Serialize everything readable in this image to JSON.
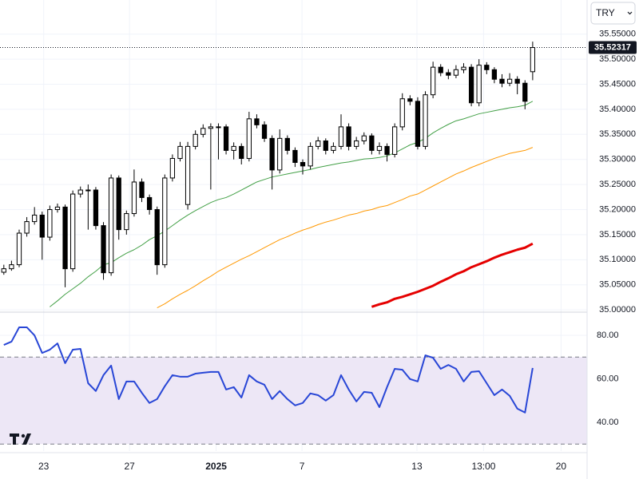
{
  "chart_data": [
    {
      "type": "candlestick",
      "currency": "TRY",
      "open": [
        35.075,
        35.082,
        35.09,
        35.153,
        35.176,
        35.189,
        35.145,
        35.2,
        35.205,
        35.082,
        35.231,
        35.239,
        35.239,
        35.168,
        35.074,
        35.263,
        35.16,
        35.192,
        35.255,
        35.224,
        35.2,
        35.09,
        35.263,
        35.302,
        35.21,
        35.326,
        35.35,
        35.362,
        35.365,
        35.365,
        35.318,
        35.326,
        35.302,
        35.381,
        35.369,
        35.342,
        35.279,
        35.342,
        35.318,
        35.294,
        35.287,
        35.326,
        35.337,
        35.318,
        35.326,
        35.365,
        35.326,
        35.337,
        35.347,
        35.318,
        35.326,
        35.31,
        35.365,
        35.421,
        35.416,
        35.326,
        35.429,
        35.484,
        35.473,
        35.468,
        35.479,
        35.484,
        35.413,
        35.488,
        35.479,
        35.46,
        35.452,
        35.46,
        35.452,
        35.475
      ],
      "high": [
        35.09,
        35.098,
        35.16,
        35.185,
        35.205,
        35.196,
        35.208,
        35.212,
        35.21,
        35.238,
        35.246,
        35.25,
        35.245,
        35.175,
        35.27,
        35.268,
        35.198,
        35.28,
        35.262,
        35.23,
        35.206,
        35.27,
        35.31,
        35.335,
        35.335,
        35.358,
        35.37,
        35.372,
        35.372,
        35.37,
        35.334,
        35.332,
        35.395,
        35.39,
        35.376,
        35.348,
        35.36,
        35.348,
        35.324,
        35.3,
        35.334,
        35.345,
        35.342,
        35.334,
        35.39,
        35.372,
        35.345,
        35.354,
        35.352,
        35.334,
        35.332,
        35.372,
        35.432,
        35.428,
        35.424,
        35.436,
        35.495,
        35.49,
        35.48,
        35.488,
        35.492,
        35.49,
        35.5,
        35.494,
        35.484,
        35.47,
        35.472,
        35.466,
        35.458,
        35.535
      ],
      "low": [
        35.07,
        35.078,
        35.085,
        35.146,
        35.17,
        35.1,
        35.138,
        35.194,
        35.045,
        35.076,
        35.224,
        35.16,
        35.16,
        35.06,
        35.068,
        35.14,
        35.15,
        35.186,
        35.215,
        35.19,
        35.07,
        35.084,
        35.256,
        35.296,
        35.2,
        35.32,
        35.344,
        35.24,
        35.3,
        35.31,
        35.3,
        35.29,
        35.296,
        35.362,
        35.335,
        35.24,
        35.272,
        35.31,
        35.285,
        35.27,
        35.28,
        35.32,
        35.31,
        35.312,
        35.32,
        35.318,
        35.32,
        35.33,
        35.31,
        35.31,
        35.296,
        35.304,
        35.358,
        35.408,
        35.32,
        35.32,
        35.422,
        35.466,
        35.46,
        35.462,
        35.472,
        35.406,
        35.406,
        35.47,
        35.452,
        35.444,
        35.446,
        35.43,
        35.4,
        35.458
      ],
      "close": [
        35.082,
        35.09,
        35.153,
        35.176,
        35.189,
        35.145,
        35.2,
        35.205,
        35.082,
        35.231,
        35.239,
        35.239,
        35.168,
        35.074,
        35.263,
        35.16,
        35.192,
        35.255,
        35.224,
        35.2,
        35.09,
        35.263,
        35.302,
        35.326,
        35.326,
        35.35,
        35.362,
        35.365,
        35.365,
        35.318,
        35.326,
        35.302,
        35.381,
        35.369,
        35.342,
        35.279,
        35.342,
        35.318,
        35.294,
        35.287,
        35.326,
        35.337,
        35.318,
        35.326,
        35.365,
        35.326,
        35.337,
        35.347,
        35.318,
        35.326,
        35.31,
        35.365,
        35.421,
        35.416,
        35.326,
        35.429,
        35.484,
        35.473,
        35.468,
        35.479,
        35.484,
        35.413,
        35.488,
        35.479,
        35.46,
        35.452,
        35.46,
        35.452,
        35.416,
        35.52317
      ],
      "up_color": "#ffffff",
      "down_color": "#000000",
      "overlays": [
        {
          "color": "#43a047",
          "width": 1,
          "values": [
            null,
            null,
            null,
            null,
            null,
            null,
            35.006,
            35.018,
            35.031,
            35.042,
            35.053,
            35.066,
            35.077,
            35.09,
            35.094,
            35.104,
            35.113,
            35.12,
            35.129,
            35.14,
            35.148,
            35.157,
            35.168,
            35.179,
            35.189,
            35.198,
            35.206,
            35.214,
            35.22,
            35.224,
            35.231,
            35.239,
            35.247,
            35.255,
            35.26,
            35.265,
            35.268,
            35.271,
            35.274,
            35.277,
            35.28,
            35.284,
            35.287,
            35.29,
            35.293,
            35.295,
            35.298,
            35.301,
            35.302,
            35.304,
            35.307,
            35.313,
            35.321,
            35.329,
            35.334,
            35.342,
            35.353,
            35.362,
            35.37,
            35.377,
            35.381,
            35.386,
            35.391,
            35.394,
            35.397,
            35.4,
            35.403,
            35.405,
            35.408,
            35.416
          ]
        },
        {
          "color": "#ff9800",
          "width": 1,
          "values": [
            null,
            null,
            null,
            null,
            null,
            null,
            null,
            null,
            null,
            null,
            null,
            null,
            null,
            null,
            null,
            null,
            null,
            null,
            null,
            null,
            35.004,
            35.012,
            35.022,
            35.031,
            35.039,
            35.048,
            35.058,
            35.067,
            35.077,
            35.085,
            35.093,
            35.101,
            35.108,
            35.116,
            35.124,
            35.132,
            35.14,
            35.146,
            35.153,
            35.159,
            35.164,
            35.17,
            35.175,
            35.179,
            35.184,
            35.189,
            35.192,
            35.197,
            35.2,
            35.205,
            35.208,
            35.214,
            35.22,
            35.227,
            35.231,
            35.239,
            35.247,
            35.255,
            35.263,
            35.271,
            35.277,
            35.284,
            35.29,
            35.296,
            35.302,
            35.307,
            35.312,
            35.315,
            35.318,
            35.324
          ]
        },
        {
          "color": "#e50000",
          "width": 3,
          "values": [
            null,
            null,
            null,
            null,
            null,
            null,
            null,
            null,
            null,
            null,
            null,
            null,
            null,
            null,
            null,
            null,
            null,
            null,
            null,
            null,
            null,
            null,
            null,
            null,
            null,
            null,
            null,
            null,
            null,
            null,
            null,
            null,
            null,
            null,
            null,
            null,
            null,
            null,
            null,
            null,
            null,
            null,
            null,
            null,
            null,
            null,
            null,
            null,
            35.006,
            35.011,
            35.015,
            35.022,
            35.026,
            35.031,
            35.036,
            35.042,
            35.048,
            35.056,
            35.063,
            35.071,
            35.077,
            35.085,
            35.091,
            35.097,
            35.104,
            35.11,
            35.115,
            35.12,
            35.124,
            35.132
          ]
        }
      ],
      "xlim": [
        -0.5,
        76.1
      ],
      "ylim": [
        34.997,
        35.618
      ],
      "yticks": [
        {
          "value": 35.0,
          "label": "35.00000"
        },
        {
          "value": 35.05,
          "label": "35.05000"
        },
        {
          "value": 35.1,
          "label": "35.10000"
        },
        {
          "value": 35.15,
          "label": "35.15000"
        },
        {
          "value": 35.2,
          "label": "35.20000"
        },
        {
          "value": 35.25,
          "label": "35.25000"
        },
        {
          "value": 35.3,
          "label": "35.30000"
        },
        {
          "value": 35.35,
          "label": "35.35000"
        },
        {
          "value": 35.4,
          "label": "35.40000"
        },
        {
          "value": 35.45,
          "label": "35.45000"
        },
        {
          "value": 35.5,
          "label": "35.50000"
        },
        {
          "value": 35.55,
          "label": "35.55000"
        }
      ],
      "grid": true,
      "last_price_line": true
    },
    {
      "type": "line",
      "color": "#2846d6",
      "values": [
        75.6,
        77.1,
        83.7,
        83.7,
        80,
        71.9,
        73.4,
        76.3,
        67.2,
        73.4,
        73.8,
        58.0,
        54.4,
        61.7,
        66.1,
        50.7,
        58.8,
        58.8,
        53.6,
        48.9,
        50.7,
        56.6,
        61.7,
        61.0,
        61.0,
        62.4,
        62.8,
        63.2,
        63.2,
        55.1,
        56.2,
        51.4,
        61.7,
        58.8,
        57.3,
        50.7,
        54.4,
        50.7,
        47.8,
        48.9,
        53.3,
        52.5,
        50.0,
        52.5,
        61.7,
        55.1,
        49.6,
        54.0,
        53.6,
        47.0,
        56.2,
        64.6,
        64.2,
        59.9,
        58.8,
        70.8,
        69.7,
        64.6,
        66.4,
        64.6,
        58.8,
        63.2,
        63.5,
        58.0,
        52.5,
        55.1,
        52.2,
        46.3,
        44.5,
        65.0
      ],
      "xlim": [
        -0.5,
        76.1
      ],
      "ylim": [
        26.8,
        90.3
      ],
      "yticks": [
        {
          "value": 40,
          "label": "40.00"
        },
        {
          "value": 60,
          "label": "60.00"
        },
        {
          "value": 80,
          "label": "80.00"
        }
      ],
      "bands": [
        30,
        70
      ],
      "band_color": "#ede7f6",
      "xticks": [
        {
          "value": 5.2,
          "label": "23"
        },
        {
          "value": 16.4,
          "label": "27"
        },
        {
          "value": 27.7,
          "label": "2025",
          "bold": true
        },
        {
          "value": 38.9,
          "label": "7"
        },
        {
          "value": 53.9,
          "label": "13"
        },
        {
          "value": 62.6,
          "label": "13:00"
        },
        {
          "value": 72.7,
          "label": "20"
        }
      ],
      "grid": true
    }
  ]
}
